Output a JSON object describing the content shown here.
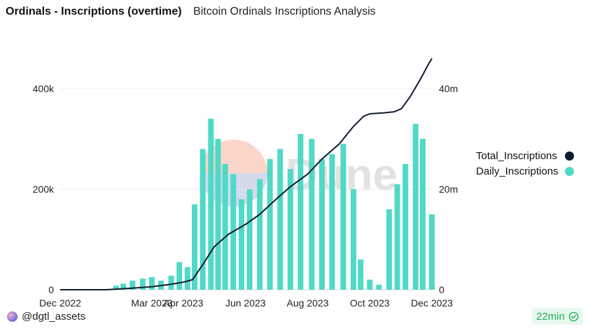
{
  "header": {
    "title": "Ordinals - Inscriptions (overtime)",
    "subtitle": "Bitcoin Ordinals Inscriptions Analysis"
  },
  "watermark": "Dune",
  "footer": {
    "user": "@dgtl_assets",
    "refresh": "22min"
  },
  "legend": [
    {
      "label": "Total_Inscriptions",
      "color": "#0f1b2e"
    },
    {
      "label": "Daily_Inscriptions",
      "color": "#4fd9c6"
    }
  ],
  "chart_data": {
    "type": "bar",
    "x_axis": {
      "type": "date",
      "range": [
        "2022-12-01",
        "2023-12-01"
      ],
      "tick_labels": [
        "Dec 2022",
        "Mar 2023",
        "Apr 2023",
        "Jun 2023",
        "Aug 2023",
        "Oct 2023",
        "Dec 2023"
      ],
      "tick_dates": [
        "2022-12-01",
        "2023-03-01",
        "2023-04-01",
        "2023-06-01",
        "2023-08-01",
        "2023-10-01",
        "2023-12-01"
      ]
    },
    "y_left": {
      "series": "Daily_Inscriptions",
      "range": [
        0,
        500000
      ],
      "ticks": [
        0,
        200000,
        400000
      ],
      "tick_labels": [
        "0",
        "200k",
        "400k"
      ]
    },
    "y_right": {
      "series": "Total_Inscriptions",
      "range": [
        0,
        50000000
      ],
      "ticks": [
        0,
        20000000,
        40000000
      ],
      "tick_labels": [
        "0",
        "20m",
        "40m"
      ]
    },
    "grid": true,
    "legend_position": "right",
    "series": [
      {
        "name": "Daily_Inscriptions",
        "type": "bar",
        "axis": "left",
        "color": "#4fd9c6",
        "points": [
          [
            "2022-12-15",
            0
          ],
          [
            "2023-01-01",
            0
          ],
          [
            "2023-01-15",
            1000
          ],
          [
            "2023-01-25",
            8000
          ],
          [
            "2023-02-01",
            12000
          ],
          [
            "2023-02-10",
            18000
          ],
          [
            "2023-02-20",
            22000
          ],
          [
            "2023-03-01",
            25000
          ],
          [
            "2023-03-10",
            18000
          ],
          [
            "2023-03-20",
            28000
          ],
          [
            "2023-03-28",
            55000
          ],
          [
            "2023-04-05",
            45000
          ],
          [
            "2023-04-12",
            170000
          ],
          [
            "2023-04-20",
            280000
          ],
          [
            "2023-04-28",
            340000
          ],
          [
            "2023-05-05",
            300000
          ],
          [
            "2023-05-12",
            250000
          ],
          [
            "2023-05-20",
            230000
          ],
          [
            "2023-05-28",
            180000
          ],
          [
            "2023-06-05",
            200000
          ],
          [
            "2023-06-15",
            220000
          ],
          [
            "2023-06-25",
            260000
          ],
          [
            "2023-07-05",
            280000
          ],
          [
            "2023-07-15",
            240000
          ],
          [
            "2023-07-25",
            310000
          ],
          [
            "2023-08-05",
            300000
          ],
          [
            "2023-08-15",
            260000
          ],
          [
            "2023-08-25",
            270000
          ],
          [
            "2023-09-05",
            290000
          ],
          [
            "2023-09-15",
            200000
          ],
          [
            "2023-09-22",
            60000
          ],
          [
            "2023-10-01",
            20000
          ],
          [
            "2023-10-10",
            10000
          ],
          [
            "2023-10-20",
            160000
          ],
          [
            "2023-10-28",
            210000
          ],
          [
            "2023-11-05",
            250000
          ],
          [
            "2023-11-15",
            330000
          ],
          [
            "2023-11-22",
            300000
          ],
          [
            "2023-12-01",
            150000
          ]
        ]
      },
      {
        "name": "Total_Inscriptions",
        "type": "line",
        "axis": "right",
        "color": "#0f1b2e",
        "points": [
          [
            "2022-12-01",
            0
          ],
          [
            "2023-01-15",
            0
          ],
          [
            "2023-02-01",
            200000
          ],
          [
            "2023-03-01",
            600000
          ],
          [
            "2023-03-20",
            1100000
          ],
          [
            "2023-04-01",
            1500000
          ],
          [
            "2023-04-10",
            2000000
          ],
          [
            "2023-04-20",
            5000000
          ],
          [
            "2023-05-01",
            8500000
          ],
          [
            "2023-05-15",
            11000000
          ],
          [
            "2023-06-01",
            13000000
          ],
          [
            "2023-06-15",
            15000000
          ],
          [
            "2023-07-01",
            18000000
          ],
          [
            "2023-07-15",
            20500000
          ],
          [
            "2023-08-01",
            23000000
          ],
          [
            "2023-08-15",
            26000000
          ],
          [
            "2023-09-01",
            29000000
          ],
          [
            "2023-09-15",
            32500000
          ],
          [
            "2023-09-25",
            34500000
          ],
          [
            "2023-10-01",
            35000000
          ],
          [
            "2023-10-15",
            35200000
          ],
          [
            "2023-10-25",
            35400000
          ],
          [
            "2023-11-01",
            36000000
          ],
          [
            "2023-11-10",
            38500000
          ],
          [
            "2023-11-20",
            42000000
          ],
          [
            "2023-11-28",
            45000000
          ],
          [
            "2023-12-01",
            46000000
          ]
        ]
      }
    ]
  }
}
